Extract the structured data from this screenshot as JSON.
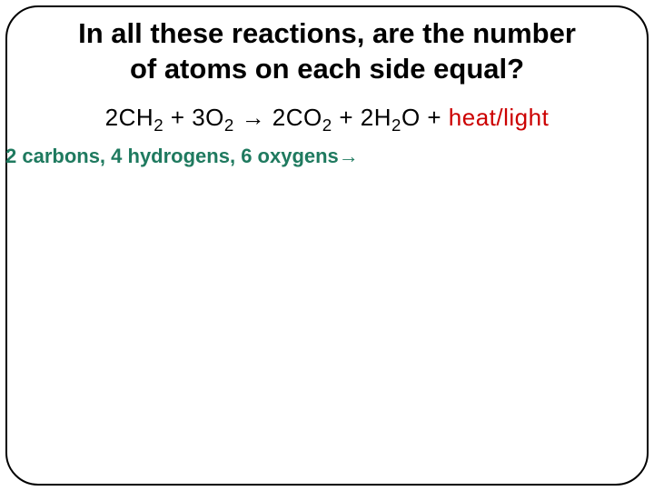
{
  "title": {
    "line1": "In all these reactions, are the number",
    "line2_prefix": "of ",
    "line2_atoms": "atoms",
    "line2_suffix": " on each side equal?",
    "color": "#000000",
    "fontsize": 31
  },
  "equation": {
    "t1": "2CH",
    "s1": "2",
    "t2": " + 3O",
    "s2": "2",
    "t3": " ",
    "arrow": "→",
    "t4": " 2CO",
    "s3": "2",
    "t5": " + 2H",
    "s4": "2",
    "t6": "O + ",
    "heat": "heat/light",
    "color": "#000000",
    "heat_color": "#cc0000",
    "fontsize": 26
  },
  "count": {
    "text": "2 carbons, 4 hydrogens, 6 oxygens",
    "arrow": "→",
    "color": "#1f7a5f",
    "fontsize": 22
  },
  "frame": {
    "border_color": "#000000",
    "border_radius": 36,
    "background": "#ffffff"
  }
}
